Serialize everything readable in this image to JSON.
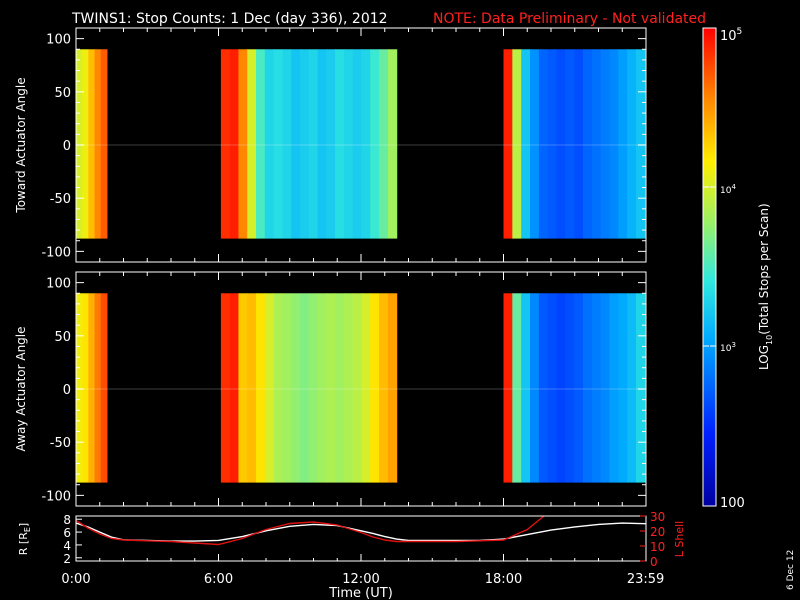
{
  "header": {
    "title": "TWINS1: Stop Counts:  1 Dec (day 336), 2012",
    "note": "NOTE: Data Preliminary - Not validated"
  },
  "side_date": "6 Dec 12",
  "colors": {
    "background": "#000000",
    "axes": "#ffffff",
    "note": "#ff2020",
    "r_line": "#ffffff",
    "l_line": "#e01010"
  },
  "chart_data": [
    {
      "type": "heatmap",
      "panel": "toward",
      "ylabel": "Toward Actuator Angle",
      "ylim": [
        -110,
        110
      ],
      "yticks": [
        "100",
        "50",
        "0",
        "-50",
        "-100"
      ],
      "data_angle_range": [
        -88,
        90
      ],
      "xlim": [
        0,
        24
      ],
      "segments": [
        {
          "start": 0.0,
          "end": 1.3,
          "profile": [
            4.0,
            4.1,
            4.35,
            4.55,
            4.7
          ]
        },
        {
          "start": 6.1,
          "end": 13.5,
          "profile": [
            4.85,
            4.9,
            4.55,
            4.0,
            3.5,
            3.3,
            3.35,
            3.3,
            3.2,
            3.25,
            3.3,
            3.2,
            3.25,
            3.35,
            3.3,
            3.25,
            3.3,
            3.45,
            3.6,
            3.8
          ]
        },
        {
          "start": 18.0,
          "end": 23.95,
          "profile": [
            4.9,
            3.9,
            3.2,
            2.95,
            2.75,
            2.7,
            2.65,
            2.7,
            2.65,
            2.75,
            2.8,
            2.85,
            2.9,
            3.0,
            3.1,
            3.2
          ]
        }
      ]
    },
    {
      "type": "heatmap",
      "panel": "away",
      "ylabel": "Away Actuator Angle",
      "ylim": [
        -110,
        110
      ],
      "yticks": [
        "100",
        "50",
        "0",
        "-50",
        "-100"
      ],
      "data_angle_range": [
        -88,
        90
      ],
      "xlim": [
        0,
        24
      ],
      "segments": [
        {
          "start": 0.0,
          "end": 1.3,
          "profile": [
            4.1,
            4.2,
            4.4,
            4.6,
            4.75
          ]
        },
        {
          "start": 6.1,
          "end": 13.5,
          "profile": [
            4.85,
            4.9,
            4.3,
            4.35,
            4.2,
            4.0,
            3.85,
            3.8,
            3.75,
            3.7,
            3.75,
            3.8,
            3.85,
            3.8,
            3.85,
            3.9,
            4.0,
            4.2,
            4.35,
            4.45
          ]
        },
        {
          "start": 18.0,
          "end": 23.95,
          "profile": [
            4.9,
            3.6,
            3.2,
            2.9,
            2.7,
            2.65,
            2.6,
            2.65,
            2.7,
            2.8,
            2.85,
            2.9,
            3.0,
            3.05,
            3.15,
            3.3
          ]
        }
      ]
    },
    {
      "type": "line",
      "ylabel": "R [R",
      "ylabel_sub": "E",
      "ylabel_end": "]",
      "ylim": [
        1.5,
        8.5
      ],
      "yticks": [
        "8",
        "6",
        "4",
        "2"
      ],
      "y2label": "L Shell",
      "y2lim": [
        0,
        30
      ],
      "y2ticks": [
        "30",
        "20",
        "10",
        "0"
      ],
      "xlabel": "Time (UT)",
      "xticks": [
        "0:00",
        "6:00",
        "12:00",
        "18:00",
        "23:59"
      ],
      "xlim": [
        0,
        24
      ],
      "series": [
        {
          "axis": "left",
          "x": [
            0,
            0.5,
            1,
            1.5,
            2,
            3,
            4,
            5,
            6,
            7,
            8,
            9,
            10,
            11,
            12,
            12.5,
            13,
            13.5,
            14,
            15,
            16,
            17,
            18,
            19,
            20,
            21,
            22,
            23,
            24
          ],
          "y": [
            7.4,
            6.8,
            6.0,
            5.2,
            4.8,
            4.7,
            4.6,
            4.6,
            4.7,
            5.3,
            6.2,
            6.9,
            7.2,
            7.0,
            6.2,
            5.8,
            5.3,
            4.9,
            4.7,
            4.7,
            4.7,
            4.7,
            4.9,
            5.6,
            6.3,
            6.8,
            7.2,
            7.4,
            7.3
          ]
        },
        {
          "axis": "right",
          "x": [
            0,
            0.5,
            1,
            1.5,
            2,
            3,
            4,
            5,
            6,
            7,
            8,
            9,
            10,
            11,
            12,
            12.5,
            13,
            13.5,
            14,
            15,
            16,
            17,
            18,
            19,
            19.7
          ],
          "y": [
            27,
            22,
            18,
            15,
            14,
            13.5,
            13,
            12,
            11,
            15,
            21,
            25,
            26,
            24,
            19,
            16,
            14,
            13,
            13,
            13,
            13,
            13.5,
            14,
            21,
            30
          ]
        }
      ]
    }
  ],
  "colorbar": {
    "label": "LOG",
    "label_sub": "10",
    "label_rest": "(Total Stops per Scan)",
    "tick_top_base": "10",
    "tick_top_exp": "5",
    "tick_mid_base": "10",
    "tick_mid_exp": "4",
    "tick_low_base": "10",
    "tick_low_exp": "3",
    "tick_bottom": "100",
    "range": [
      2,
      5
    ]
  }
}
